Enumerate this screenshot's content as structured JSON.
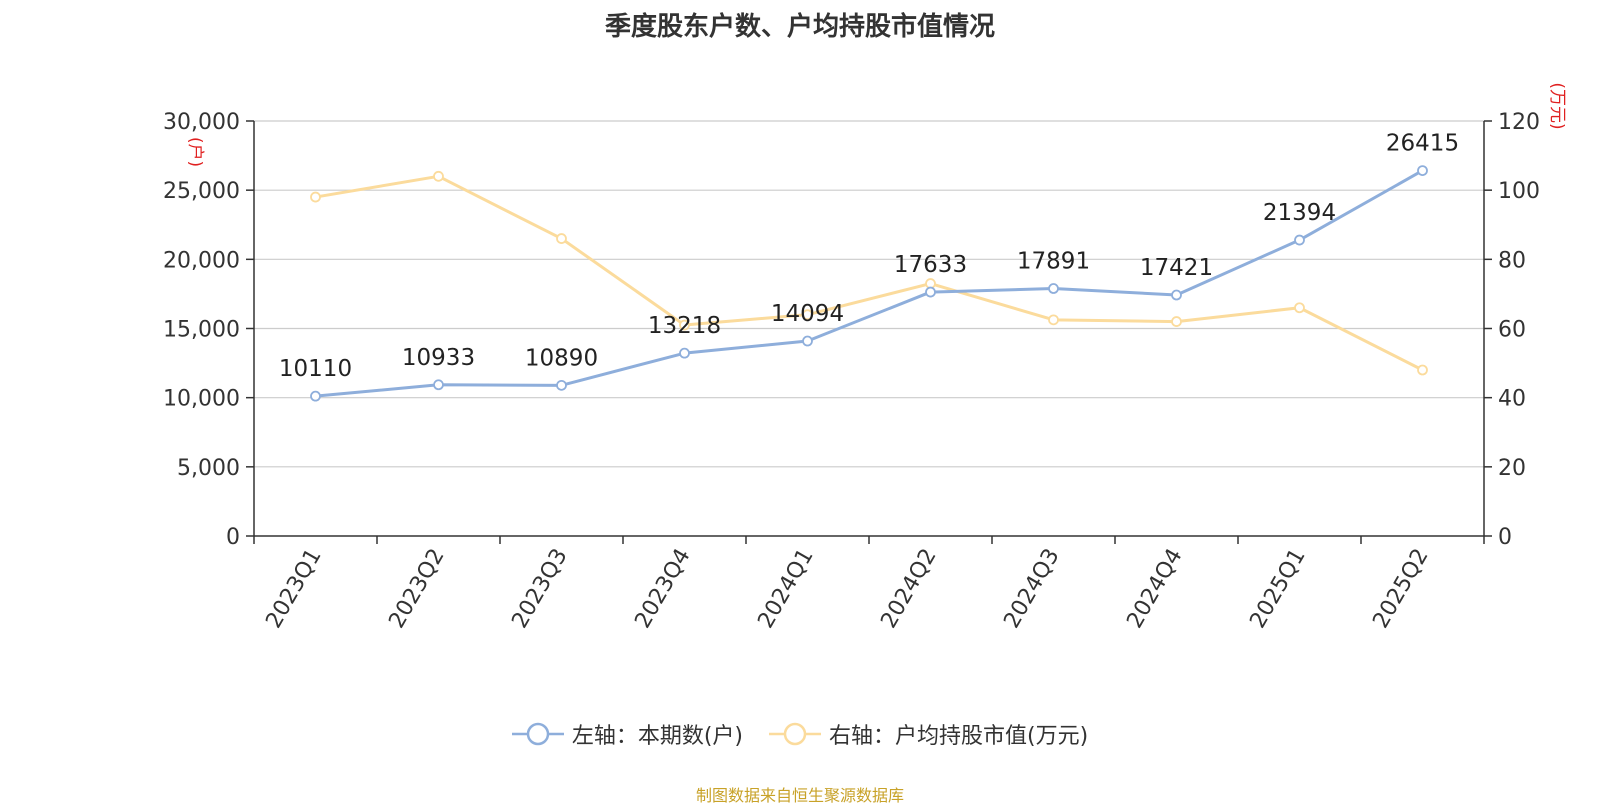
{
  "title": "季度股东户数、户均持股市值情况",
  "source": "制图数据来自恒生聚源数据库",
  "colors": {
    "series1": "#8eaedb",
    "series2": "#fbdb9c",
    "unit_label": "#e02020",
    "source_text": "#c8a228",
    "axis": "#333333",
    "grid": "#cccccc"
  },
  "chart_data": {
    "type": "line",
    "title": "季度股东户数、户均持股市值情况",
    "categories": [
      "2023Q1",
      "2023Q2",
      "2023Q3",
      "2023Q4",
      "2024Q1",
      "2024Q2",
      "2024Q3",
      "2024Q4",
      "2025Q1",
      "2025Q2"
    ],
    "left_axis": {
      "unit": "(户)",
      "min": 0,
      "max": 30000,
      "ticks": [
        "0",
        "5,000",
        "10,000",
        "15,000",
        "20,000",
        "25,000",
        "30,000"
      ]
    },
    "right_axis": {
      "unit": "(万元)",
      "min": 0,
      "max": 120,
      "ticks": [
        "0",
        "20",
        "40",
        "60",
        "80",
        "100",
        "120"
      ]
    },
    "grid": true,
    "legend_position": "bottom",
    "series": [
      {
        "name": "左轴：本期数(户)",
        "axis": "left",
        "values": [
          10110,
          10933,
          10890,
          13218,
          14094,
          17633,
          17891,
          17421,
          21394,
          26415
        ],
        "labels": [
          "10110",
          "10933",
          "10890",
          "13218",
          "14094",
          "17633",
          "17891",
          "17421",
          "21394",
          "26415"
        ]
      },
      {
        "name": "右轴：户均持股市值(万元)",
        "axis": "right",
        "values": [
          98,
          104,
          86,
          61,
          64,
          73,
          62.5,
          62,
          66,
          48
        ]
      }
    ]
  }
}
